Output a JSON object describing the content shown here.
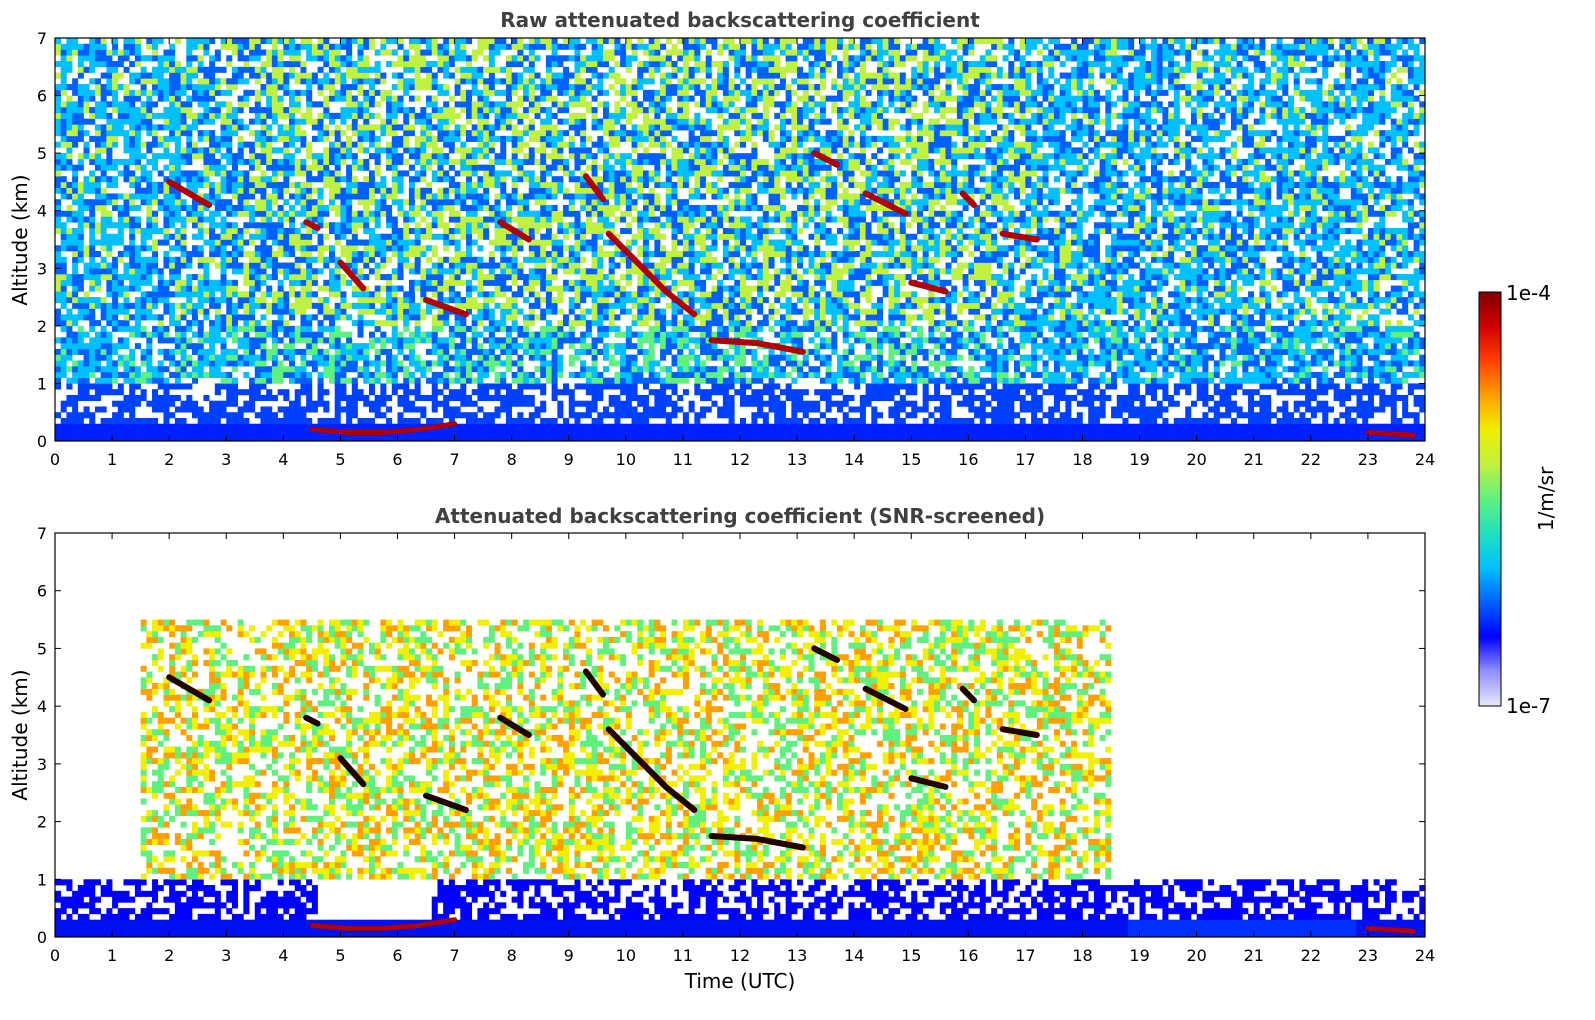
{
  "chart_data": [
    {
      "type": "heatmap",
      "title": "Raw attenuated backscattering coefficient",
      "xlabel": "",
      "ylabel": "Altitude (km)",
      "xlim": [
        0,
        24
      ],
      "ylim": [
        0,
        7
      ],
      "xticks": [
        "0",
        "1",
        "2",
        "3",
        "4",
        "5",
        "6",
        "7",
        "8",
        "9",
        "10",
        "11",
        "12",
        "13",
        "14",
        "15",
        "16",
        "17",
        "18",
        "19",
        "20",
        "21",
        "22",
        "23",
        "24"
      ],
      "yticks": [
        "0",
        "1",
        "2",
        "3",
        "4",
        "5",
        "6",
        "7"
      ],
      "x_unit": "Time (UTC, hours)",
      "y_unit": "km",
      "colorscale": "jet",
      "features": [
        {
          "kind": "surface_layer",
          "t_start": 0.0,
          "t_end": 24.0,
          "z_top": 0.3
        },
        {
          "kind": "cloud_base",
          "t_start": 4.5,
          "t_end": 7.0,
          "z": [
            0.2,
            0.15,
            0.15,
            0.2,
            0.3
          ]
        },
        {
          "kind": "cloud_base",
          "t_start": 23.0,
          "t_end": 23.8,
          "z": [
            0.15,
            0.1
          ]
        },
        {
          "kind": "elevated_layer",
          "t_start": 9.3,
          "t_end": 9.6,
          "z": [
            4.6,
            4.2
          ]
        },
        {
          "kind": "elevated_layer",
          "t_start": 9.7,
          "t_end": 11.2,
          "z": [
            3.6,
            3.1,
            2.6,
            2.2
          ]
        },
        {
          "kind": "elevated_layer",
          "t_start": 11.5,
          "t_end": 13.1,
          "z": [
            1.75,
            1.7,
            1.55
          ]
        },
        {
          "kind": "elevated_layer",
          "t_start": 14.2,
          "t_end": 14.9,
          "z": [
            4.3,
            3.95
          ]
        },
        {
          "kind": "elevated_layer",
          "t_start": 15.0,
          "t_end": 15.6,
          "z": [
            2.75,
            2.6
          ]
        },
        {
          "kind": "elevated_layer",
          "t_start": 5.0,
          "t_end": 5.4,
          "z": [
            3.1,
            2.65
          ]
        },
        {
          "kind": "elevated_layer",
          "t_start": 6.5,
          "t_end": 7.2,
          "z": [
            2.45,
            2.2
          ]
        },
        {
          "kind": "elevated_layer",
          "t_start": 7.8,
          "t_end": 8.3,
          "z": [
            3.8,
            3.5
          ]
        },
        {
          "kind": "elevated_layer",
          "t_start": 13.3,
          "t_end": 13.7,
          "z": [
            5.0,
            4.8
          ]
        },
        {
          "kind": "elevated_layer",
          "t_start": 15.9,
          "t_end": 16.1,
          "z": [
            4.3,
            4.1
          ]
        },
        {
          "kind": "elevated_layer",
          "t_start": 16.6,
          "t_end": 17.2,
          "z": [
            3.6,
            3.5
          ]
        },
        {
          "kind": "elevated_layer",
          "t_start": 2.0,
          "t_end": 2.7,
          "z": [
            4.5,
            4.1
          ]
        },
        {
          "kind": "elevated_layer",
          "t_start": 4.4,
          "t_end": 4.6,
          "z": [
            3.8,
            3.7
          ]
        }
      ]
    },
    {
      "type": "heatmap",
      "title": "Attenuated backscattering coefficient (SNR-screened)",
      "xlabel": "Time (UTC)",
      "ylabel": "Altitude (km)",
      "xlim": [
        0,
        24
      ],
      "ylim": [
        0,
        7
      ],
      "xticks": [
        "0",
        "1",
        "2",
        "3",
        "4",
        "5",
        "6",
        "7",
        "8",
        "9",
        "10",
        "11",
        "12",
        "13",
        "14",
        "15",
        "16",
        "17",
        "18",
        "19",
        "20",
        "21",
        "22",
        "23",
        "24"
      ],
      "yticks": [
        "0",
        "1",
        "2",
        "3",
        "4",
        "5",
        "6",
        "7"
      ],
      "x_unit": "Time (UTC, hours)",
      "y_unit": "km",
      "colorscale": "jet"
    }
  ],
  "colorbar": {
    "label": "1/m/sr",
    "max_label": "1e-4",
    "min_label": "1e-7",
    "vmin": 1e-07,
    "vmax": 0.0001,
    "scale": "log",
    "colormap": [
      "#e8e8f8",
      "#9090ff",
      "#0000ff",
      "#0060ff",
      "#00c0ff",
      "#20e0c0",
      "#60f080",
      "#c0f040",
      "#f0f000",
      "#ffa000",
      "#ff4000",
      "#d00000",
      "#800000"
    ]
  }
}
